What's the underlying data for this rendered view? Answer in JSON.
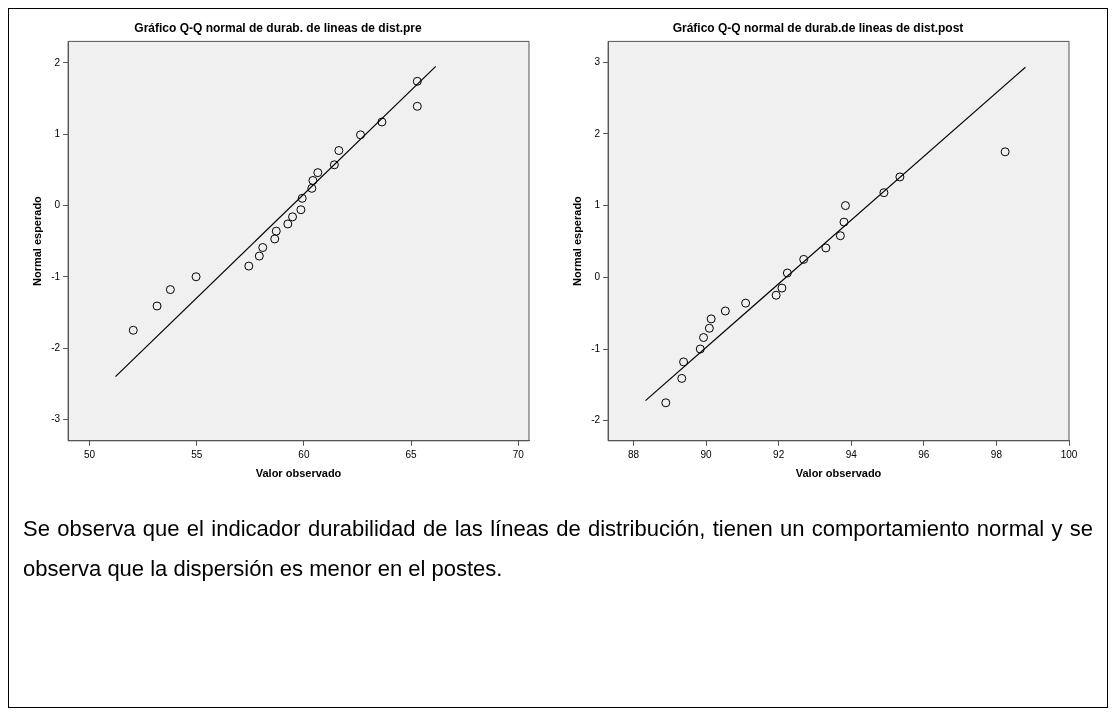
{
  "chart_data": [
    {
      "type": "scatter",
      "title": "Gráfico Q-Q normal de durab. de lineas de dist.pre",
      "xlabel": "Valor observado",
      "ylabel": "Normal esperado",
      "xlim": [
        49,
        70.5
      ],
      "ylim": [
        -3.3,
        2.3
      ],
      "xticks": [
        50,
        55,
        60,
        65,
        70
      ],
      "yticks": [
        -3,
        -2,
        -1,
        0,
        1,
        2
      ],
      "grid": false,
      "legend": false,
      "series": [
        {
          "type": "scatter",
          "marker": "circle",
          "color": "#000000",
          "x": [
            52.04,
            53.15,
            53.77,
            54.97,
            57.43,
            57.92,
            58.08,
            58.64,
            58.71,
            59.25,
            59.47,
            59.86,
            59.92,
            60.37,
            60.42,
            60.65,
            61.42,
            61.63,
            62.64,
            63.64,
            65.29,
            65.29
          ],
          "values": [
            -1.75,
            -1.41,
            -1.18,
            -1.0,
            -0.85,
            -0.71,
            -0.59,
            -0.47,
            -0.36,
            -0.26,
            -0.16,
            -0.06,
            0.1,
            0.24,
            0.35,
            0.46,
            0.57,
            0.77,
            0.99,
            1.17,
            1.39,
            1.74
          ]
        },
        {
          "type": "line",
          "marker": "none",
          "color": "#000000",
          "x": [
            51.21,
            66.15
          ],
          "values": [
            -2.4,
            1.95
          ]
        }
      ]
    },
    {
      "type": "scatter",
      "title": "Gráfico Q-Q normal de durab.de lineas de dist.post",
      "xlabel": "Valor observado",
      "ylabel": "Normal esperado",
      "xlim": [
        87.3,
        100
      ],
      "ylim": [
        -2.28,
        3.29
      ],
      "xticks": [
        88,
        90,
        92,
        94,
        96,
        98,
        100
      ],
      "yticks": [
        -2,
        -1,
        0,
        1,
        2,
        3
      ],
      "grid": false,
      "legend": false,
      "series": [
        {
          "type": "scatter",
          "marker": "circle",
          "color": "#000000",
          "x": [
            88.89,
            89.33,
            89.38,
            89.84,
            89.93,
            90.09,
            90.14,
            90.53,
            91.09,
            91.93,
            92.09,
            92.24,
            92.69,
            93.3,
            93.7,
            93.8,
            93.84,
            94.9,
            95.34,
            98.24
          ],
          "values": [
            -1.75,
            -1.41,
            -1.18,
            -1.0,
            -0.84,
            -0.71,
            -0.58,
            -0.47,
            -0.36,
            -0.25,
            -0.15,
            0.06,
            0.25,
            0.41,
            0.58,
            0.77,
            1.0,
            1.18,
            1.4,
            1.75
          ]
        },
        {
          "type": "line",
          "marker": "none",
          "color": "#000000",
          "x": [
            88.33,
            98.8
          ],
          "values": [
            -1.72,
            2.93
          ]
        }
      ]
    },
    {
      "type": "other",
      "annotations": [
        "Se observa que el indicador durabilidad de las líneas de distribución, tienen un comportamiento normal y se observa que la dispersión es menor en el postes."
      ]
    }
  ]
}
